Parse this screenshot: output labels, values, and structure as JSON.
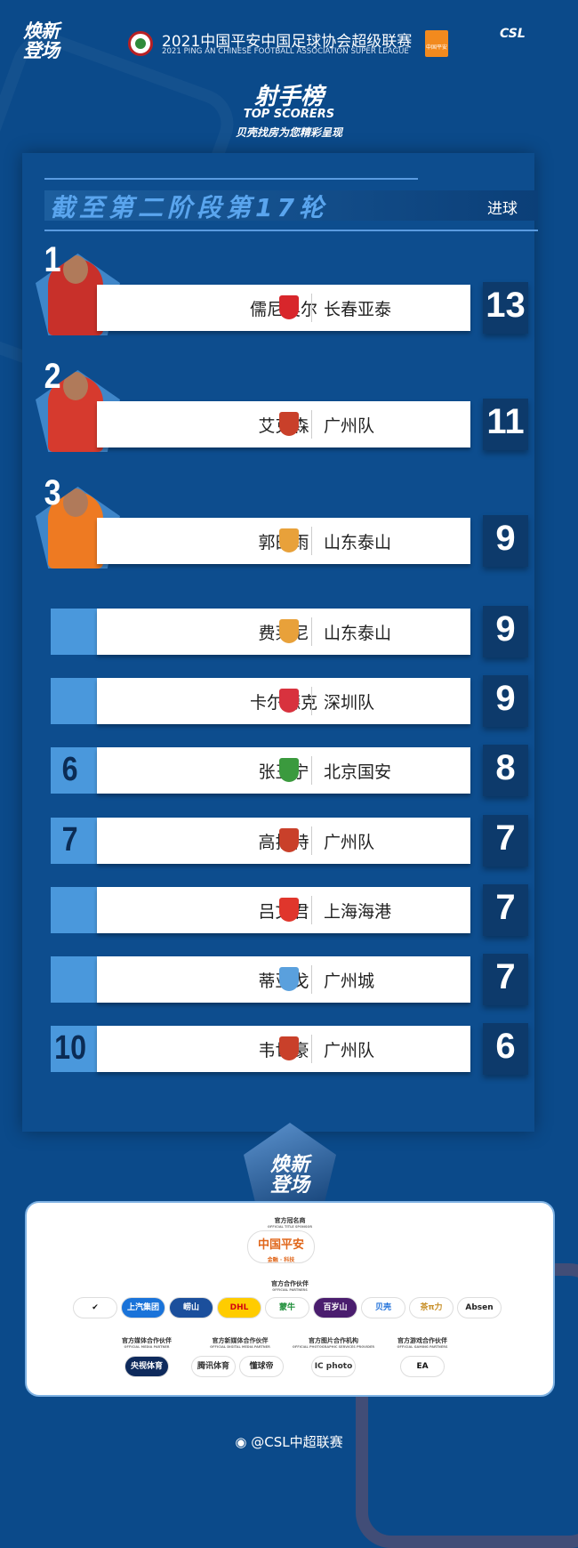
{
  "header": {
    "brand_slogan": "焕新登场",
    "title_cn": "2021中国平安中国足球协会超级联赛",
    "title_en": "2021 PING AN CHINESE FOOTBALL ASSOCIATION SUPER LEAGUE",
    "sponsor_badge": "中国平安",
    "league_logo": "CSL"
  },
  "heading": {
    "title": "射手榜",
    "subtitle": "TOP SCORERS",
    "presenter": "贝壳找房为您精彩呈现"
  },
  "section": {
    "title": "截至第二阶段第17轮",
    "goals_label": "进球"
  },
  "scorers": [
    {
      "rank": "1",
      "name": "儒尼奥尔",
      "team": "长春亚泰",
      "goals": "13",
      "team_color": "#d8262b",
      "jersey": "#c8302a"
    },
    {
      "rank": "2",
      "name": "艾克森",
      "team": "广州队",
      "goals": "11",
      "team_color": "#c9402a",
      "jersey": "#d63a2e"
    },
    {
      "rank": "3",
      "name": "郭田雨",
      "team": "山东泰山",
      "goals": "9",
      "team_color": "#e8a13a",
      "jersey": "#ee7a22"
    },
    {
      "rank": "",
      "name": "费莱尼",
      "team": "山东泰山",
      "goals": "9",
      "team_color": "#e8a13a"
    },
    {
      "rank": "",
      "name": "卡尔德克",
      "team": "深圳队",
      "goals": "9",
      "team_color": "#d8323e"
    },
    {
      "rank": "6",
      "name": "张玉宁",
      "team": "北京国安",
      "goals": "8",
      "team_color": "#3b9a3e"
    },
    {
      "rank": "7",
      "name": "高拉特",
      "team": "广州队",
      "goals": "7",
      "team_color": "#c9402a"
    },
    {
      "rank": "",
      "name": "吕文君",
      "team": "上海海港",
      "goals": "7",
      "team_color": "#e0362c"
    },
    {
      "rank": "",
      "name": "蒂亚戈",
      "team": "广州城",
      "goals": "7",
      "team_color": "#5aa0dd"
    },
    {
      "rank": "10",
      "name": "韦世豪",
      "team": "广州队",
      "goals": "6",
      "team_color": "#c9402a"
    }
  ],
  "badge": {
    "text": "焕新登场",
    "logo": "CSL"
  },
  "sponsors": {
    "title_sponsor": {
      "label_cn": "官方冠名商",
      "label_en": "OFFICIAL TITLE SPONSOR",
      "name": "中国平安",
      "tagline": "金融 · 科技"
    },
    "partners": {
      "label_cn": "官方合作伙伴",
      "label_en": "OFFICIAL PARTNERS",
      "items": [
        {
          "name": "✔",
          "bg": "#ffffff",
          "fg": "#111111"
        },
        {
          "name": "上汽集团",
          "bg": "#1a73d9",
          "fg": "#ffffff"
        },
        {
          "name": "崂山",
          "bg": "#1b4f9c",
          "fg": "#ffffff"
        },
        {
          "name": "DHL",
          "bg": "#ffcc00",
          "fg": "#d40511"
        },
        {
          "name": "蒙牛",
          "bg": "#ffffff",
          "fg": "#1f8f3a"
        },
        {
          "name": "百岁山",
          "bg": "#4a1d6e",
          "fg": "#ffffff"
        },
        {
          "name": "贝壳",
          "bg": "#ffffff",
          "fg": "#1e6fd9"
        },
        {
          "name": "茶π力",
          "bg": "#ffffff",
          "fg": "#c8902a"
        },
        {
          "name": "Absen",
          "bg": "#ffffff",
          "fg": "#222222"
        }
      ]
    },
    "groups": [
      {
        "label_cn": "官方媒体合作伙伴",
        "label_en": "OFFICIAL MEDIA PARTNER",
        "items": [
          {
            "name": "央视体育",
            "bg": "#0e2a5c",
            "fg": "#ffffff"
          }
        ]
      },
      {
        "label_cn": "官方新媒体合作伙伴",
        "label_en": "OFFICIAL DIGITAL MEDIA PARTNER",
        "items": [
          {
            "name": "腾讯体育",
            "bg": "#ffffff",
            "fg": "#333333"
          },
          {
            "name": "懂球帝",
            "bg": "#ffffff",
            "fg": "#333333"
          }
        ]
      },
      {
        "label_cn": "官方图片合作机构",
        "label_en": "OFFICIAL PHOTOGRAPHIC SERVICES PROVIDER",
        "items": [
          {
            "name": "IC photo",
            "bg": "#ffffff",
            "fg": "#333333"
          }
        ]
      },
      {
        "label_cn": "官方游戏合作伙伴",
        "label_en": "OFFICIAL GAMING PARTNERS",
        "items": [
          {
            "name": "EA",
            "bg": "#ffffff",
            "fg": "#111111"
          }
        ]
      }
    ]
  },
  "footer": {
    "weibo_handle": "@CSL中超联赛"
  }
}
